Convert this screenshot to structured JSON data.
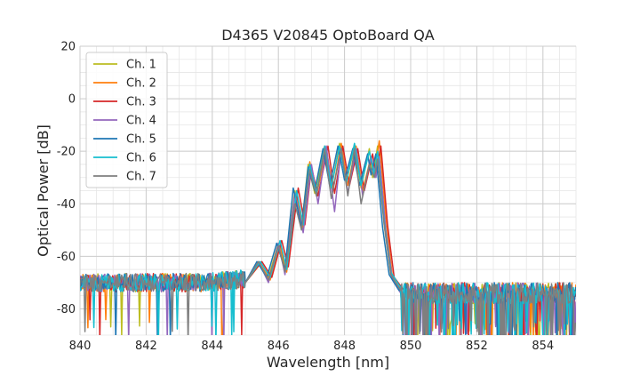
{
  "chart_data": {
    "type": "line",
    "title": "D4365 V20845 OptoBoard QA",
    "xlabel": "Wavelength [nm]",
    "ylabel": "Optical Power [dB]",
    "xlim": [
      840,
      855
    ],
    "ylim": [
      -90,
      20
    ],
    "xticks": [
      840,
      842,
      844,
      846,
      848,
      850,
      852,
      854
    ],
    "yticks": [
      -80,
      -60,
      -40,
      -20,
      0,
      20
    ],
    "x_minor_step": 0.5,
    "y_minor_step": 5,
    "grid": true,
    "legend_position": "top-left",
    "noise_floor_db": -72,
    "series": [
      {
        "name": "Ch. 1",
        "color": "#bcbd22",
        "points": [
          [
            845.0,
            -70
          ],
          [
            845.4,
            -63
          ],
          [
            845.7,
            -68
          ],
          [
            846.0,
            -55
          ],
          [
            846.2,
            -65
          ],
          [
            846.5,
            -35
          ],
          [
            846.7,
            -49
          ],
          [
            846.9,
            -25
          ],
          [
            847.1,
            -36
          ],
          [
            847.4,
            -18
          ],
          [
            847.6,
            -34
          ],
          [
            847.85,
            -17
          ],
          [
            848.05,
            -32
          ],
          [
            848.3,
            -18
          ],
          [
            848.5,
            -34
          ],
          [
            848.75,
            -19
          ],
          [
            848.85,
            -30
          ],
          [
            849.0,
            -18
          ],
          [
            849.2,
            -48
          ],
          [
            849.4,
            -67
          ],
          [
            849.7,
            -73
          ]
        ]
      },
      {
        "name": "Ch. 2",
        "color": "#ff7f0e",
        "points": [
          [
            845.0,
            -70
          ],
          [
            845.45,
            -63
          ],
          [
            845.75,
            -69
          ],
          [
            846.05,
            -56
          ],
          [
            846.25,
            -66
          ],
          [
            846.55,
            -37
          ],
          [
            846.75,
            -50
          ],
          [
            846.95,
            -24
          ],
          [
            847.15,
            -37
          ],
          [
            847.45,
            -19
          ],
          [
            847.65,
            -35
          ],
          [
            847.9,
            -17
          ],
          [
            848.1,
            -33
          ],
          [
            848.35,
            -18
          ],
          [
            848.55,
            -35
          ],
          [
            848.8,
            -22
          ],
          [
            848.9,
            -29
          ],
          [
            849.05,
            -16
          ],
          [
            849.25,
            -45
          ],
          [
            849.45,
            -68
          ],
          [
            849.75,
            -74
          ]
        ]
      },
      {
        "name": "Ch. 3",
        "color": "#d62728",
        "points": [
          [
            845.0,
            -70
          ],
          [
            845.5,
            -62
          ],
          [
            845.8,
            -68
          ],
          [
            846.1,
            -54
          ],
          [
            846.3,
            -64
          ],
          [
            846.6,
            -34
          ],
          [
            846.8,
            -48
          ],
          [
            847.0,
            -26
          ],
          [
            847.2,
            -37
          ],
          [
            847.5,
            -18
          ],
          [
            847.7,
            -36
          ],
          [
            847.95,
            -18
          ],
          [
            848.15,
            -33
          ],
          [
            848.4,
            -19
          ],
          [
            848.6,
            -35
          ],
          [
            848.85,
            -21
          ],
          [
            848.95,
            -29
          ],
          [
            849.1,
            -18
          ],
          [
            849.3,
            -48
          ],
          [
            849.5,
            -68
          ],
          [
            849.8,
            -73
          ]
        ]
      },
      {
        "name": "Ch. 4",
        "color": "#9467bd",
        "points": [
          [
            845.0,
            -70
          ],
          [
            845.4,
            -62
          ],
          [
            845.7,
            -70
          ],
          [
            846.0,
            -55
          ],
          [
            846.2,
            -67
          ],
          [
            846.5,
            -36
          ],
          [
            846.75,
            -51
          ],
          [
            847.0,
            -25
          ],
          [
            847.2,
            -40
          ],
          [
            847.45,
            -18
          ],
          [
            847.7,
            -43
          ],
          [
            847.9,
            -19
          ],
          [
            848.1,
            -36
          ],
          [
            848.35,
            -19
          ],
          [
            848.55,
            -37
          ],
          [
            848.8,
            -22
          ],
          [
            848.95,
            -30
          ],
          [
            849.05,
            -22
          ],
          [
            849.25,
            -50
          ],
          [
            849.45,
            -69
          ],
          [
            849.75,
            -75
          ]
        ]
      },
      {
        "name": "Ch. 5",
        "color": "#1f77b4",
        "points": [
          [
            845.0,
            -70
          ],
          [
            845.35,
            -62
          ],
          [
            845.65,
            -68
          ],
          [
            845.95,
            -55
          ],
          [
            846.2,
            -65
          ],
          [
            846.45,
            -34
          ],
          [
            846.7,
            -49
          ],
          [
            846.9,
            -26
          ],
          [
            847.1,
            -35
          ],
          [
            847.35,
            -19
          ],
          [
            847.55,
            -33
          ],
          [
            847.8,
            -18
          ],
          [
            848.0,
            -31
          ],
          [
            848.25,
            -19
          ],
          [
            848.45,
            -33
          ],
          [
            848.7,
            -21
          ],
          [
            848.8,
            -29
          ],
          [
            848.95,
            -21
          ],
          [
            849.15,
            -49
          ],
          [
            849.35,
            -67
          ],
          [
            849.65,
            -73
          ]
        ]
      },
      {
        "name": "Ch. 6",
        "color": "#17becf",
        "points": [
          [
            845.0,
            -70
          ],
          [
            845.45,
            -62
          ],
          [
            845.75,
            -68
          ],
          [
            846.05,
            -54
          ],
          [
            846.25,
            -65
          ],
          [
            846.55,
            -35
          ],
          [
            846.75,
            -48
          ],
          [
            846.95,
            -25
          ],
          [
            847.15,
            -36
          ],
          [
            847.4,
            -18
          ],
          [
            847.6,
            -34
          ],
          [
            847.85,
            -18
          ],
          [
            848.05,
            -32
          ],
          [
            848.3,
            -17
          ],
          [
            848.5,
            -33
          ],
          [
            848.75,
            -20
          ],
          [
            848.9,
            -29
          ],
          [
            849.0,
            -20
          ],
          [
            849.2,
            -47
          ],
          [
            849.4,
            -66
          ],
          [
            849.7,
            -72
          ]
        ]
      },
      {
        "name": "Ch. 7",
        "color": "#7f7f7f",
        "points": [
          [
            845.0,
            -70
          ],
          [
            845.4,
            -62
          ],
          [
            845.7,
            -69
          ],
          [
            846.0,
            -56
          ],
          [
            846.2,
            -66
          ],
          [
            846.5,
            -40
          ],
          [
            846.7,
            -50
          ],
          [
            846.95,
            -27
          ],
          [
            847.15,
            -37
          ],
          [
            847.4,
            -19
          ],
          [
            847.6,
            -38
          ],
          [
            847.9,
            -19
          ],
          [
            848.1,
            -37
          ],
          [
            848.3,
            -19
          ],
          [
            848.5,
            -40
          ],
          [
            848.75,
            -25
          ],
          [
            848.9,
            -30
          ],
          [
            849.0,
            -23
          ],
          [
            849.2,
            -48
          ],
          [
            849.4,
            -67
          ],
          [
            849.7,
            -73
          ]
        ]
      }
    ]
  }
}
